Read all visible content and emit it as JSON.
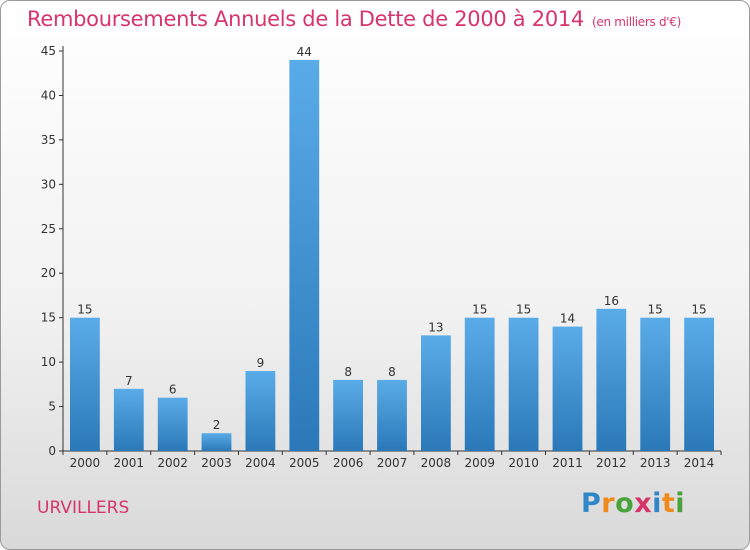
{
  "header": {
    "title": "Remboursements Annuels de la Dette de 2000 à 2014",
    "unit": "(en milliers d'€)"
  },
  "footer": {
    "city": "URVILLERS",
    "brand": "Proxiti"
  },
  "colors": {
    "title": "#d6356a",
    "bar_top": "#5aace8",
    "bar_bottom": "#2a78b8",
    "axis": "#333333"
  },
  "chart_data": {
    "type": "bar",
    "categories": [
      "2000",
      "2001",
      "2002",
      "2003",
      "2004",
      "2005",
      "2006",
      "2007",
      "2008",
      "2009",
      "2010",
      "2011",
      "2012",
      "2013",
      "2014"
    ],
    "values": [
      15,
      7,
      6,
      2,
      9,
      44,
      8,
      8,
      13,
      15,
      15,
      14,
      16,
      15,
      15
    ],
    "yticks": [
      0,
      5,
      10,
      15,
      20,
      25,
      30,
      35,
      40,
      45
    ],
    "ylim": [
      0,
      45
    ],
    "grid": false,
    "data_labels": true
  }
}
